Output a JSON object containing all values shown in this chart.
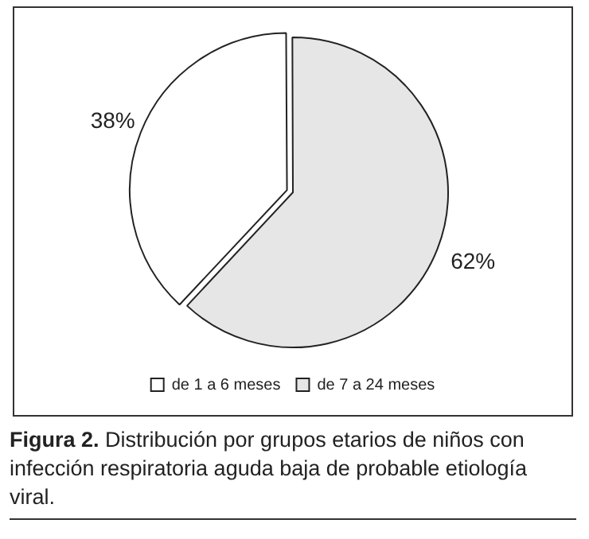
{
  "chart_data": {
    "type": "pie",
    "categories": [
      "de 1 a 6 meses",
      "de 7 a 24 meses"
    ],
    "values": [
      38,
      62
    ],
    "colors": [
      "#ffffff",
      "#e6e6e6"
    ],
    "value_labels": [
      "38%",
      "62%"
    ],
    "legend": "bottom",
    "annotations": [
      "Figura 2.",
      "Distribución por grupos etarios de niños con infección respiratoria aguda baja de probable etiología viral."
    ]
  }
}
